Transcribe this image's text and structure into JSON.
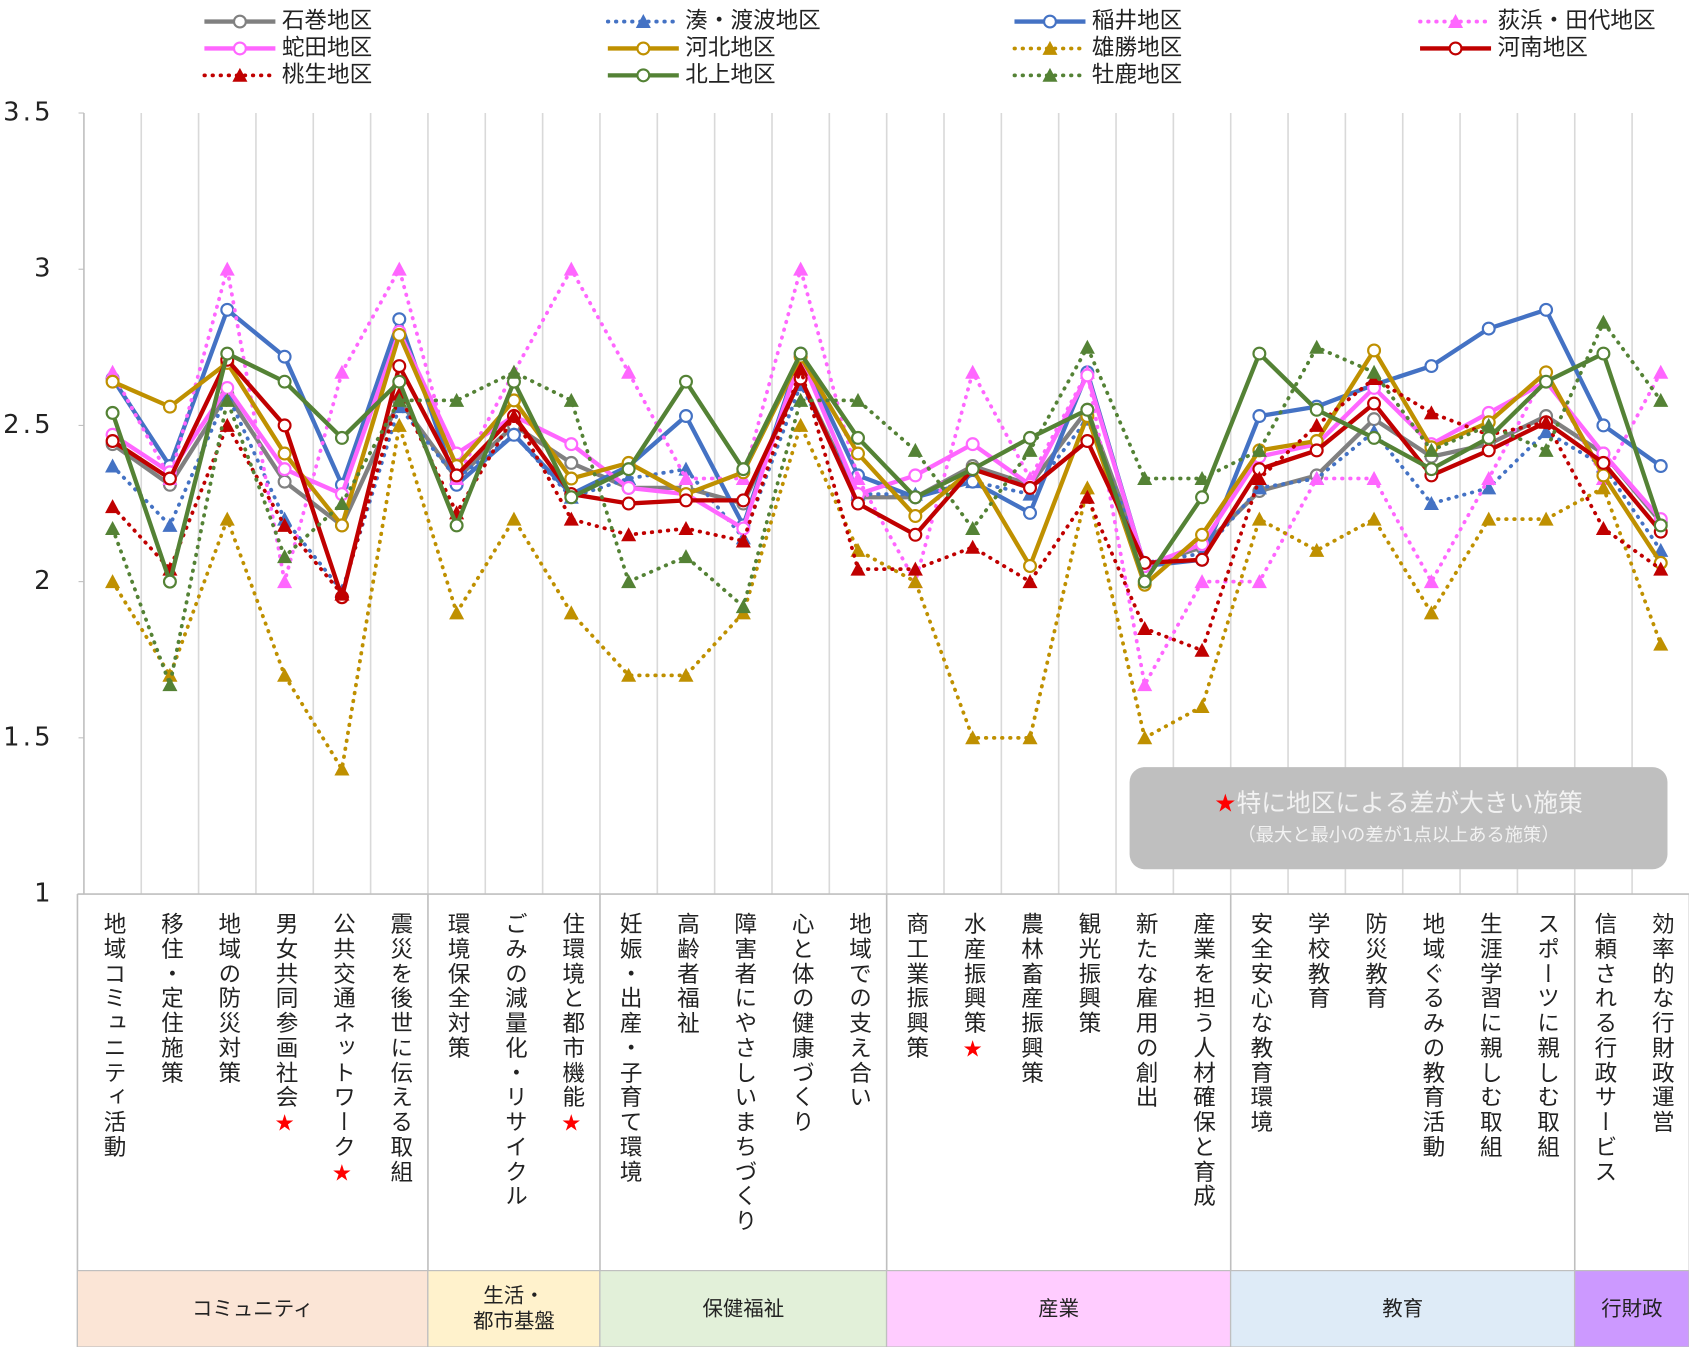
{
  "chart_data": {
    "type": "line",
    "categories": [
      "地域コミュニティ活動",
      "移住・定住施策",
      "地域の防災対策",
      "男女共同参画社会★",
      "公共交通ネットワーク★",
      "震災を後世に伝える取組",
      "環境保全対策",
      "ごみの減量化・リサイクル",
      "住環境と都市機能★",
      "妊娠・出産・子育て環境",
      "高齢者福祉",
      "障害者にやさしいまちづくり",
      "心と体の健康づくり",
      "地域での支え合い",
      "商工業振興策",
      "水産振興策★",
      "農林畜産振興策",
      "観光振興策",
      "新たな雇用の創出",
      "産業を担う人材確保と育成",
      "安全安心な教育環境",
      "学校教育",
      "防災教育",
      "地域ぐるみの教育活動",
      "生涯学習に親しむ取組",
      "スポーツに親しむ取組",
      "信頼される行政サービス",
      "効率的な行財政運営"
    ],
    "groups": [
      {
        "label": "コミュニティ",
        "span": 6,
        "color": "#fbe5d6"
      },
      {
        "label": "生活・\n都市基盤",
        "span": 3,
        "color": "#fff2cc"
      },
      {
        "label": "保健福祉",
        "span": 5,
        "color": "#e2f0d9"
      },
      {
        "label": "産業",
        "span": 6,
        "color": "#ffccff"
      },
      {
        "label": "教育",
        "span": 6,
        "color": "#deebf7"
      },
      {
        "label": "行財政",
        "span": 2,
        "color": "#cc99ff"
      }
    ],
    "annotation": {
      "title": "★特に地区による差が大きい施策",
      "note": "（最大と最小の差が1点以上ある施策）"
    },
    "ylim": [
      1,
      3.5
    ],
    "yticks": [
      1,
      1.5,
      2,
      2.5,
      3,
      3.5
    ],
    "grid": "vertical",
    "series": [
      {
        "name": "石巻地区",
        "color": "#808080",
        "style": "solid",
        "marker": "circle",
        "values": [
          2.44,
          2.31,
          2.6,
          2.32,
          2.18,
          2.58,
          2.33,
          2.5,
          2.38,
          2.3,
          2.3,
          2.25,
          2.65,
          2.27,
          2.27,
          2.37,
          2.31,
          2.55,
          2.05,
          2.11,
          2.29,
          2.34,
          2.52,
          2.4,
          2.44,
          2.53,
          2.41,
          2.19
        ]
      },
      {
        "name": "湊・渡波地区",
        "color": "#4472c4",
        "style": "dotted",
        "marker": "triangle",
        "values": [
          2.37,
          2.18,
          2.6,
          2.2,
          1.97,
          2.56,
          2.33,
          2.47,
          2.27,
          2.33,
          2.36,
          2.14,
          2.63,
          2.28,
          2.28,
          2.32,
          2.28,
          2.52,
          2.06,
          2.09,
          2.3,
          2.33,
          2.48,
          2.25,
          2.3,
          2.48,
          2.37,
          2.1
        ]
      },
      {
        "name": "稲井地区",
        "color": "#4472c4",
        "style": "solid",
        "marker": "circle",
        "values": [
          2.65,
          2.37,
          2.87,
          2.72,
          2.31,
          2.84,
          2.31,
          2.47,
          2.28,
          2.37,
          2.53,
          2.18,
          2.73,
          2.34,
          2.27,
          2.32,
          2.22,
          2.67,
          2.05,
          2.07,
          2.53,
          2.56,
          2.63,
          2.69,
          2.81,
          2.87,
          2.5,
          2.37
        ]
      },
      {
        "name": "荻浜・田代地区",
        "color": "#ff66ff",
        "style": "dotted",
        "marker": "triangle",
        "values": [
          2.67,
          2.33,
          3.0,
          2.0,
          2.67,
          3.0,
          2.33,
          2.67,
          3.0,
          2.67,
          2.33,
          2.33,
          3.0,
          2.33,
          2.0,
          2.67,
          2.33,
          2.67,
          1.67,
          2.0,
          2.0,
          2.33,
          2.33,
          2.0,
          2.33,
          2.67,
          2.33,
          2.67
        ]
      },
      {
        "name": "蛇田地区",
        "color": "#ff66ff",
        "style": "solid",
        "marker": "circle",
        "values": [
          2.47,
          2.35,
          2.62,
          2.36,
          2.28,
          2.8,
          2.41,
          2.53,
          2.44,
          2.3,
          2.28,
          2.17,
          2.72,
          2.28,
          2.34,
          2.44,
          2.31,
          2.66,
          2.05,
          2.12,
          2.4,
          2.44,
          2.62,
          2.44,
          2.54,
          2.64,
          2.41,
          2.2
        ]
      },
      {
        "name": "河北地区",
        "color": "#bf9000",
        "style": "solid",
        "marker": "circle",
        "values": [
          2.64,
          2.56,
          2.7,
          2.41,
          2.18,
          2.79,
          2.37,
          2.58,
          2.33,
          2.38,
          2.28,
          2.35,
          2.72,
          2.41,
          2.21,
          2.36,
          2.05,
          2.53,
          1.99,
          2.15,
          2.42,
          2.45,
          2.74,
          2.43,
          2.51,
          2.67,
          2.34,
          2.06
        ]
      },
      {
        "name": "雄勝地区",
        "color": "#bf9000",
        "style": "dotted",
        "marker": "triangle",
        "values": [
          2.0,
          1.7,
          2.2,
          1.7,
          1.4,
          2.5,
          1.9,
          2.2,
          1.9,
          1.7,
          1.7,
          1.9,
          2.5,
          2.1,
          2.0,
          1.5,
          1.5,
          2.3,
          1.5,
          1.6,
          2.2,
          2.1,
          2.2,
          1.9,
          2.2,
          2.2,
          2.3,
          1.8
        ]
      },
      {
        "name": "河南地区",
        "color": "#c00000",
        "style": "solid",
        "marker": "circle",
        "values": [
          2.45,
          2.33,
          2.71,
          2.5,
          1.95,
          2.69,
          2.34,
          2.53,
          2.28,
          2.25,
          2.26,
          2.26,
          2.65,
          2.25,
          2.15,
          2.36,
          2.3,
          2.45,
          2.06,
          2.07,
          2.36,
          2.42,
          2.57,
          2.34,
          2.42,
          2.51,
          2.38,
          2.16
        ]
      },
      {
        "name": "桃生地区",
        "color": "#c00000",
        "style": "dotted",
        "marker": "triangle",
        "values": [
          2.24,
          2.04,
          2.5,
          2.18,
          1.96,
          2.6,
          2.22,
          2.53,
          2.2,
          2.15,
          2.17,
          2.13,
          2.68,
          2.04,
          2.04,
          2.11,
          2.0,
          2.27,
          1.85,
          1.78,
          2.33,
          2.5,
          2.65,
          2.54,
          2.47,
          2.51,
          2.17,
          2.04
        ]
      },
      {
        "name": "北上地区",
        "color": "#548235",
        "style": "solid",
        "marker": "circle",
        "values": [
          2.54,
          2.0,
          2.73,
          2.64,
          2.46,
          2.64,
          2.18,
          2.64,
          2.27,
          2.36,
          2.64,
          2.36,
          2.73,
          2.46,
          2.27,
          2.36,
          2.46,
          2.55,
          2.0,
          2.27,
          2.73,
          2.55,
          2.46,
          2.36,
          2.46,
          2.64,
          2.73,
          2.18
        ]
      },
      {
        "name": "牡鹿地区",
        "color": "#548235",
        "style": "dotted",
        "marker": "triangle",
        "values": [
          2.17,
          1.67,
          2.58,
          2.08,
          2.25,
          2.58,
          2.58,
          2.67,
          2.58,
          2.0,
          2.08,
          1.92,
          2.58,
          2.58,
          2.42,
          2.17,
          2.42,
          2.75,
          2.33,
          2.33,
          2.42,
          2.75,
          2.67,
          2.42,
          2.5,
          2.42,
          2.83,
          2.58
        ]
      }
    ]
  }
}
